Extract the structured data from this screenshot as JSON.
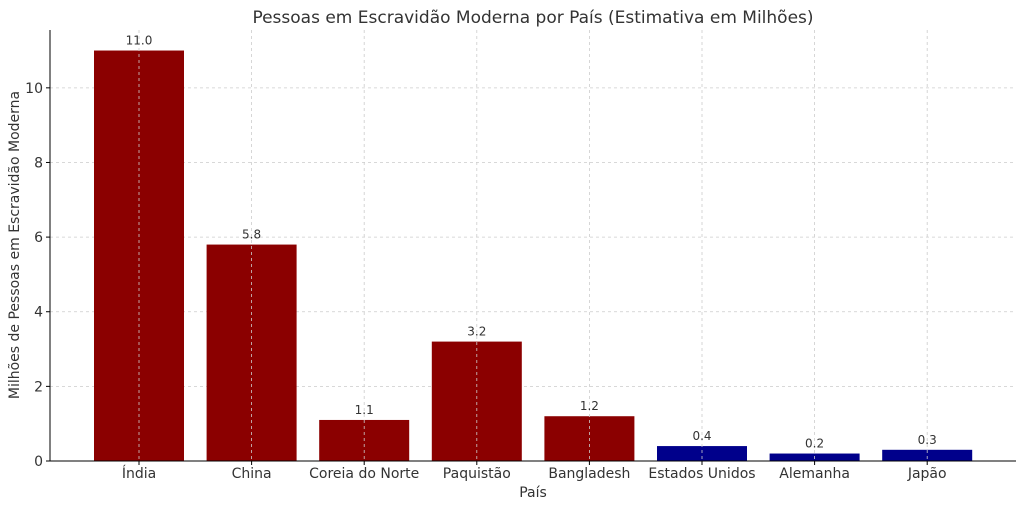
{
  "chart_data": {
    "type": "bar",
    "title": "Pessoas em Escravidão Moderna por País (Estimativa em Milhões)",
    "xlabel": "País",
    "ylabel": "Milhões de Pessoas em Escravidão Moderna",
    "categories": [
      "Índia",
      "China",
      "Coreia do Norte",
      "Paquistão",
      "Bangladesh",
      "Estados Unidos",
      "Alemanha",
      "Japão"
    ],
    "values": [
      11.0,
      5.8,
      1.1,
      3.2,
      1.2,
      0.4,
      0.2,
      0.3
    ],
    "value_labels": [
      "11.0",
      "5.8",
      "1.1",
      "3.2",
      "1.2",
      "0.4",
      "0.2",
      "0.3"
    ],
    "bar_colors": [
      "#8b0000",
      "#8b0000",
      "#8b0000",
      "#8b0000",
      "#8b0000",
      "#00008b",
      "#00008b",
      "#00008b"
    ],
    "ylim": [
      0,
      11.55
    ],
    "yticks": [
      0,
      2,
      4,
      6,
      8,
      10
    ],
    "grid": true
  }
}
